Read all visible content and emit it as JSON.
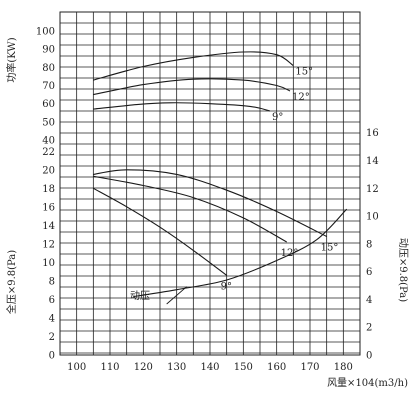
{
  "chart_data": {
    "type": "line",
    "x": {
      "label": "风量×104(m3/h)",
      "min": 95,
      "max": 185,
      "ticks": [
        100,
        110,
        120,
        130,
        140,
        150,
        160,
        170,
        180
      ]
    },
    "power_axis": {
      "label": "功率(KW)",
      "min": 40,
      "max": 105,
      "ticks": [
        40,
        50,
        60,
        70,
        80,
        90,
        100
      ],
      "series": [
        {
          "name": "15°",
          "x": [
            105,
            120,
            135,
            150,
            160,
            165
          ],
          "y": [
            73,
            80.5,
            85.5,
            88.5,
            87,
            81
          ]
        },
        {
          "name": "12°",
          "x": [
            105,
            120,
            135,
            150,
            160,
            164
          ],
          "y": [
            65,
            70.5,
            73.5,
            73,
            70,
            67
          ]
        },
        {
          "name": "9°",
          "x": [
            105,
            118,
            128,
            140,
            152,
            158
          ],
          "y": [
            57,
            59.5,
            60.5,
            60,
            58.5,
            56
          ]
        }
      ]
    },
    "pressure_axis": {
      "left_label": "全压×9.8(Pa)",
      "left_min": 0,
      "left_max": 23,
      "left_ticks": [
        0,
        2,
        4,
        6,
        8,
        10,
        12,
        14,
        16,
        18,
        20,
        22
      ],
      "right_label": "动压×9.8(Pa)",
      "right_min": 0,
      "right_max": 15.33,
      "right_ticks": [
        0,
        2,
        4,
        6,
        8,
        10,
        12,
        14,
        16
      ],
      "series": [
        {
          "name": "15°",
          "x": [
            105,
            115,
            130,
            145,
            160,
            175
          ],
          "y": [
            19.5,
            20,
            19.5,
            17.8,
            15.5,
            12.8
          ]
        },
        {
          "name": "12°",
          "x": [
            105,
            120,
            135,
            150,
            163
          ],
          "y": [
            19.3,
            18.3,
            17,
            14.8,
            12.2
          ]
        },
        {
          "name": "9°",
          "x": [
            105,
            115,
            125,
            135,
            145
          ],
          "y": [
            18,
            16,
            13.8,
            11.3,
            8.6
          ]
        },
        {
          "name": "动压",
          "x": [
            117,
            130,
            145,
            160,
            172,
            181
          ],
          "y": [
            4.2,
            4.7,
            5.4,
            6.8,
            8.3,
            10.5
          ],
          "axis": "right"
        }
      ]
    }
  }
}
